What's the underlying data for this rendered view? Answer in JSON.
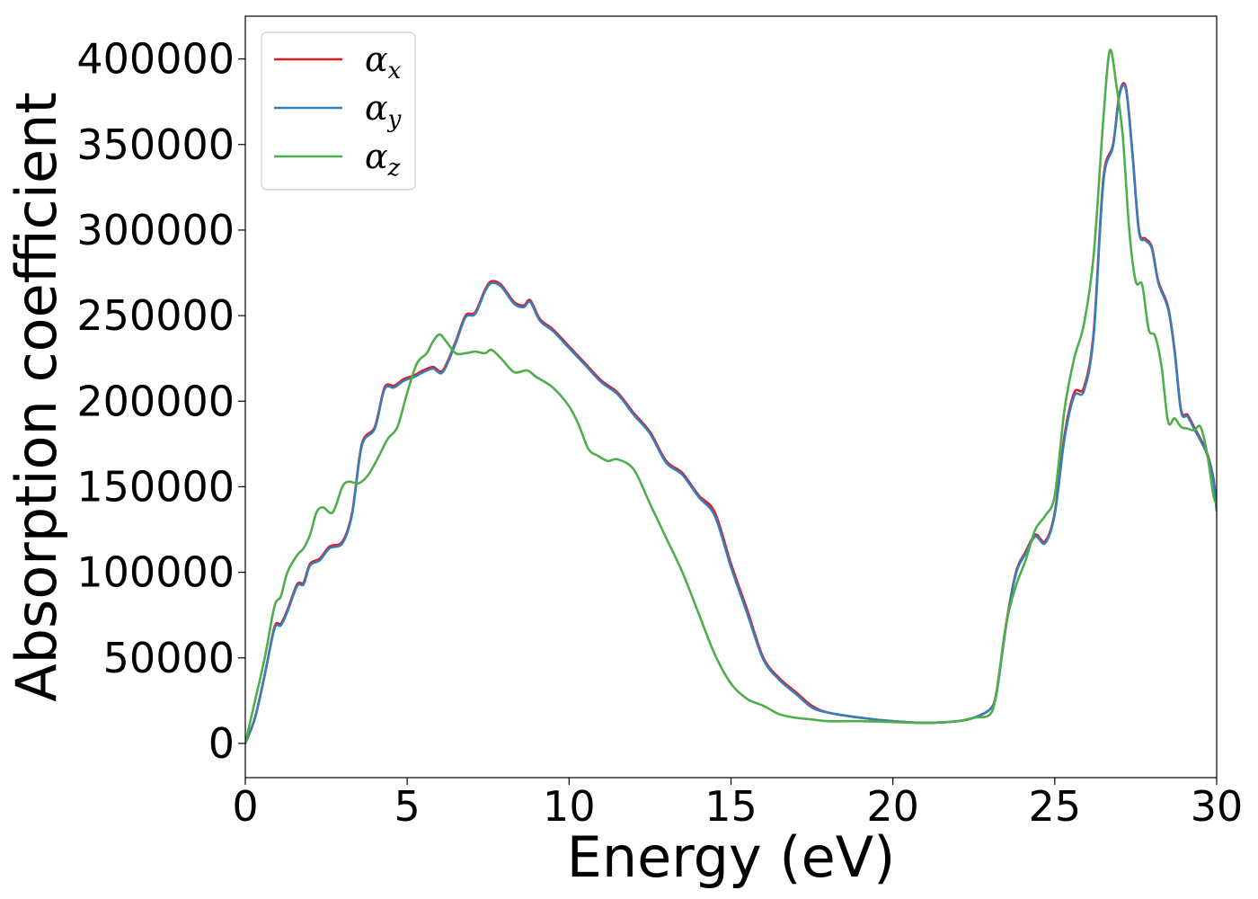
{
  "chart_data": {
    "type": "line",
    "xlabel": "Energy (eV)",
    "ylabel": "Absorption coefficient",
    "xlim": [
      0,
      30
    ],
    "ylim": [
      -20000,
      425000
    ],
    "xticks": [
      0,
      5,
      10,
      15,
      20,
      25,
      30
    ],
    "xtick_labels": [
      "0",
      "5",
      "10",
      "15",
      "20",
      "25",
      "30"
    ],
    "yticks": [
      0,
      50000,
      100000,
      150000,
      200000,
      250000,
      300000,
      350000,
      400000
    ],
    "ytick_labels": [
      "0",
      "50000",
      "100000",
      "150000",
      "200000",
      "250000",
      "300000",
      "350000",
      "400000"
    ],
    "grid": false,
    "legend_position": "top-left",
    "series": [
      {
        "name": "α_x",
        "legend_symbol": "α",
        "legend_subscript": "x",
        "color": "#e41a1c",
        "x": [
          0,
          0.3,
          0.6,
          0.9,
          1.1,
          1.3,
          1.6,
          1.8,
          2.0,
          2.3,
          2.6,
          3.0,
          3.3,
          3.6,
          4.0,
          4.3,
          4.6,
          4.9,
          5.2,
          5.5,
          5.8,
          6.1,
          6.5,
          6.8,
          7.1,
          7.4,
          7.6,
          7.9,
          8.3,
          8.6,
          8.8,
          9.1,
          9.5,
          10.0,
          10.5,
          11.0,
          11.5,
          12.0,
          12.5,
          13.0,
          13.5,
          14.0,
          14.5,
          15.0,
          15.5,
          16.0,
          16.5,
          17.0,
          17.5,
          18.0,
          19.0,
          20.0,
          21.0,
          22.0,
          22.5,
          23.0,
          23.2,
          23.5,
          23.8,
          24.1,
          24.4,
          24.7,
          25.0,
          25.3,
          25.6,
          25.9,
          26.2,
          26.5,
          26.8,
          27.0,
          27.2,
          27.4,
          27.6,
          27.8,
          28.0,
          28.2,
          28.5,
          28.7,
          28.9,
          29.1,
          29.3,
          29.5,
          29.7,
          29.9,
          30.0
        ],
        "y": [
          0,
          15000,
          40000,
          68000,
          70000,
          78000,
          93000,
          94000,
          105000,
          108000,
          115000,
          118000,
          135000,
          175000,
          185000,
          208000,
          209000,
          213000,
          215000,
          218000,
          220000,
          218000,
          235000,
          250000,
          252000,
          265000,
          270000,
          268000,
          258000,
          256000,
          259000,
          248000,
          242000,
          232000,
          222000,
          212000,
          205000,
          193000,
          182000,
          165000,
          158000,
          145000,
          135000,
          105000,
          78000,
          50000,
          38000,
          30000,
          22000,
          18000,
          15000,
          13000,
          12000,
          13000,
          15000,
          20000,
          30000,
          70000,
          100000,
          112000,
          122000,
          118000,
          135000,
          180000,
          205000,
          208000,
          240000,
          330000,
          350000,
          380000,
          383000,
          345000,
          300000,
          295000,
          290000,
          270000,
          255000,
          230000,
          195000,
          192000,
          185000,
          178000,
          170000,
          155000,
          137000
        ]
      },
      {
        "name": "α_y",
        "legend_symbol": "α",
        "legend_subscript": "y",
        "color": "#377eb8",
        "x": [
          0,
          0.3,
          0.6,
          0.9,
          1.1,
          1.3,
          1.6,
          1.8,
          2.0,
          2.3,
          2.6,
          3.0,
          3.3,
          3.6,
          4.0,
          4.3,
          4.6,
          4.9,
          5.2,
          5.5,
          5.8,
          6.1,
          6.5,
          6.8,
          7.1,
          7.4,
          7.6,
          7.9,
          8.3,
          8.6,
          8.8,
          9.1,
          9.5,
          10.0,
          10.5,
          11.0,
          11.5,
          12.0,
          12.5,
          13.0,
          13.5,
          14.0,
          14.5,
          15.0,
          15.5,
          16.0,
          16.5,
          17.0,
          17.5,
          18.0,
          19.0,
          20.0,
          21.0,
          22.0,
          22.5,
          23.0,
          23.2,
          23.5,
          23.8,
          24.1,
          24.4,
          24.7,
          25.0,
          25.3,
          25.6,
          25.9,
          26.2,
          26.5,
          26.8,
          27.0,
          27.2,
          27.4,
          27.6,
          27.8,
          28.0,
          28.2,
          28.5,
          28.7,
          28.9,
          29.1,
          29.3,
          29.5,
          29.7,
          29.9,
          30.0
        ],
        "y": [
          0,
          15000,
          40000,
          67000,
          69000,
          77000,
          92000,
          93000,
          104000,
          107000,
          114000,
          117000,
          134000,
          174000,
          184000,
          207000,
          208000,
          212000,
          214000,
          217000,
          219000,
          217000,
          234000,
          249000,
          251000,
          264000,
          269000,
          267000,
          257000,
          255000,
          258000,
          247000,
          241000,
          231000,
          221000,
          211000,
          204000,
          192000,
          181000,
          164000,
          157000,
          144000,
          133000,
          103000,
          76000,
          49000,
          37000,
          29000,
          21000,
          18000,
          15000,
          13000,
          12000,
          13000,
          15000,
          20000,
          29000,
          69000,
          99000,
          111000,
          121000,
          117000,
          134000,
          178000,
          203000,
          206000,
          238000,
          328000,
          349000,
          379000,
          382000,
          344000,
          299000,
          294000,
          289000,
          269000,
          254000,
          229000,
          194000,
          191000,
          184000,
          177000,
          169000,
          154000,
          136000
        ]
      },
      {
        "name": "α_z",
        "legend_symbol": "α",
        "legend_subscript": "z",
        "color": "#4daf4a",
        "x": [
          0,
          0.3,
          0.6,
          0.9,
          1.1,
          1.3,
          1.6,
          1.8,
          2.0,
          2.2,
          2.4,
          2.7,
          3.0,
          3.2,
          3.5,
          3.8,
          4.1,
          4.4,
          4.7,
          5.0,
          5.3,
          5.6,
          5.8,
          6.0,
          6.2,
          6.5,
          6.8,
          7.1,
          7.4,
          7.6,
          7.9,
          8.3,
          8.7,
          9.0,
          9.5,
          10.0,
          10.3,
          10.6,
          10.9,
          11.2,
          11.5,
          12.0,
          12.5,
          13.0,
          13.5,
          14.0,
          14.5,
          15.0,
          15.5,
          16.0,
          16.5,
          17.0,
          17.5,
          18.0,
          19.0,
          20.0,
          21.0,
          22.0,
          22.5,
          23.0,
          23.2,
          23.5,
          23.8,
          24.1,
          24.4,
          24.7,
          25.0,
          25.3,
          25.6,
          25.9,
          26.2,
          26.5,
          26.7,
          26.9,
          27.1,
          27.3,
          27.5,
          27.7,
          27.9,
          28.1,
          28.3,
          28.5,
          28.7,
          28.9,
          29.1,
          29.3,
          29.5,
          29.7,
          29.9,
          30.0
        ],
        "y": [
          0,
          25000,
          50000,
          80000,
          86000,
          100000,
          110000,
          114000,
          122000,
          135000,
          138000,
          135000,
          150000,
          153000,
          152000,
          157000,
          167000,
          178000,
          185000,
          205000,
          222000,
          228000,
          235000,
          239000,
          235000,
          228000,
          228000,
          229000,
          228000,
          230000,
          225000,
          217000,
          218000,
          214000,
          208000,
          197000,
          186000,
          172000,
          168000,
          165000,
          166000,
          160000,
          140000,
          120000,
          100000,
          76000,
          52000,
          35000,
          26000,
          22000,
          17000,
          15000,
          14000,
          13000,
          13000,
          12500,
          12000,
          13000,
          15000,
          17000,
          30000,
          70000,
          92000,
          107000,
          125000,
          133000,
          145000,
          195000,
          225000,
          245000,
          285000,
          365000,
          405000,
          385000,
          355000,
          300000,
          270000,
          268000,
          242000,
          238000,
          220000,
          188000,
          190000,
          185000,
          184000,
          183000,
          185000,
          170000,
          145000,
          140000
        ]
      }
    ]
  }
}
